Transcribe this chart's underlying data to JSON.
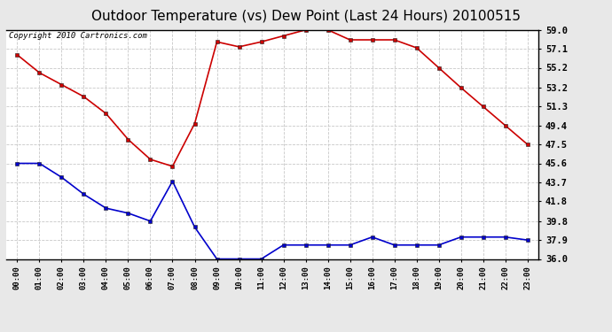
{
  "title": "Outdoor Temperature (vs) Dew Point (Last 24 Hours) 20100515",
  "copyright": "Copyright 2010 Cartronics.com",
  "x_labels": [
    "00:00",
    "01:00",
    "02:00",
    "03:00",
    "04:00",
    "05:00",
    "06:00",
    "07:00",
    "08:00",
    "09:00",
    "10:00",
    "11:00",
    "12:00",
    "13:00",
    "14:00",
    "15:00",
    "16:00",
    "17:00",
    "18:00",
    "19:00",
    "20:00",
    "21:00",
    "22:00",
    "23:00"
  ],
  "temp_red": [
    56.5,
    54.7,
    53.5,
    52.3,
    50.6,
    48.0,
    46.0,
    45.3,
    49.6,
    57.8,
    57.3,
    57.8,
    58.4,
    59.0,
    59.0,
    58.0,
    58.0,
    58.0,
    57.2,
    55.2,
    53.2,
    51.3,
    49.4,
    47.5
  ],
  "dew_blue": [
    45.6,
    45.6,
    44.2,
    42.5,
    41.1,
    40.6,
    39.8,
    43.8,
    39.2,
    36.0,
    36.0,
    36.0,
    37.4,
    37.4,
    37.4,
    37.4,
    38.2,
    37.4,
    37.4,
    37.4,
    38.2,
    38.2,
    38.2,
    37.9
  ],
  "ylim": [
    36.0,
    59.0
  ],
  "yticks": [
    36.0,
    37.9,
    39.8,
    41.8,
    43.7,
    45.6,
    47.5,
    49.4,
    51.3,
    53.2,
    55.2,
    57.1,
    59.0
  ],
  "bg_color": "#e8e8e8",
  "plot_bg": "#ffffff",
  "red_color": "#cc0000",
  "blue_color": "#0000cc",
  "grid_color": "#c8c8c8",
  "title_fontsize": 11,
  "copyright_fontsize": 6.5
}
